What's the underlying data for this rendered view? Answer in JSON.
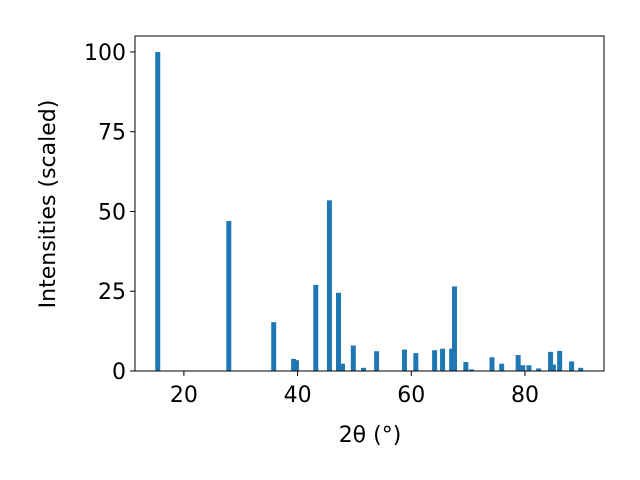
{
  "chart_data": {
    "type": "bar",
    "xlabel": "2θ (°)",
    "ylabel": "Intensities (scaled)",
    "x": [
      15.4,
      27.9,
      35.8,
      39.3,
      39.8,
      43.2,
      45.6,
      47.2,
      47.9,
      49.8,
      51.6,
      53.9,
      58.8,
      60.8,
      64.1,
      65.5,
      67.1,
      67.6,
      69.6,
      70.6,
      74.2,
      75.9,
      78.8,
      79.6,
      80.7,
      82.4,
      84.5,
      85.0,
      86.1,
      88.2,
      89.8
    ],
    "values": [
      100,
      47,
      15.3,
      3.8,
      3.4,
      27,
      53.5,
      24.5,
      2.3,
      8,
      1,
      6.2,
      6.7,
      5.6,
      6.5,
      7,
      7,
      26.5,
      2.8,
      0.5,
      4.3,
      2.3,
      5,
      1.8,
      1.8,
      0.8,
      6,
      2,
      6.3,
      3,
      1
    ],
    "color": "#1f77b4",
    "xlim": [
      11.4,
      93.9
    ],
    "xticks": [
      20,
      40,
      60,
      80
    ],
    "ylim": [
      0,
      105
    ],
    "yticks": [
      0,
      25,
      50,
      75,
      100
    ]
  }
}
